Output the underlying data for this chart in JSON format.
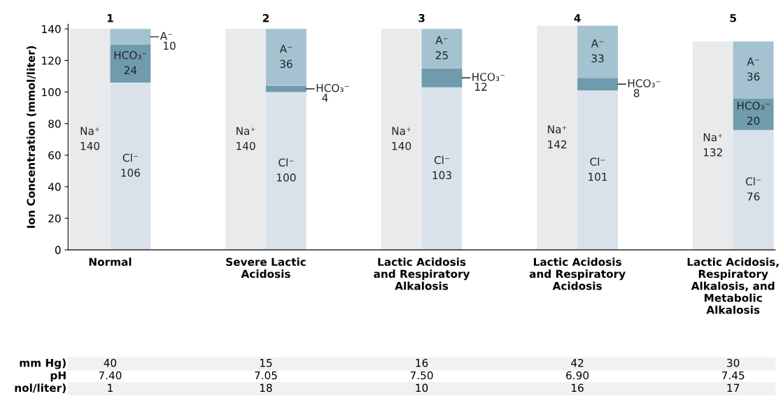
{
  "chart_data": {
    "type": "bar",
    "ylabel": "Ion Concentration (mmol/liter)",
    "categories": [
      "Normal",
      "Severe Lactic\nAcidosis",
      "Lactic Acidosis\nand Respiratory\nAlkalosis",
      "Lactic Acidosis\nand Respiratory\nAcidosis",
      "Lactic Acidosis,\nRespiratory\nAlkalosis, and\nMetabolic\nAlkalosis"
    ],
    "series": [
      {
        "name": "Na⁺",
        "color": "#e9eaec",
        "values": [
          140,
          140,
          140,
          142,
          132
        ]
      },
      {
        "name": "Cl⁻",
        "color": "#d9e2ea",
        "base": [
          0,
          0,
          0,
          0,
          0
        ],
        "values": [
          106,
          100,
          103,
          101,
          76
        ]
      },
      {
        "name": "HCO₃⁻",
        "color": "#6f9bac",
        "base": [
          106,
          100,
          103,
          101,
          76
        ],
        "values": [
          24,
          4,
          12,
          8,
          20
        ]
      },
      {
        "name": "A⁻",
        "color": "#a4c2d0",
        "base": [
          130,
          104,
          115,
          109,
          96
        ],
        "values": [
          10,
          36,
          25,
          33,
          36
        ]
      }
    ],
    "data_labels": true,
    "ylim": [
      0,
      143
    ],
    "yticks": [
      0,
      20,
      40,
      60,
      80,
      100,
      120,
      140
    ],
    "grid": false,
    "annotations": [
      "1",
      "2",
      "3",
      "4",
      "5",
      "mm Hg)",
      "40",
      "15",
      "16",
      "42",
      "30",
      "pH",
      "7.40",
      "7.05",
      "7.50",
      "6.90",
      "7.45",
      "nol/liter)",
      "1",
      "18",
      "10",
      "16",
      "17"
    ]
  }
}
